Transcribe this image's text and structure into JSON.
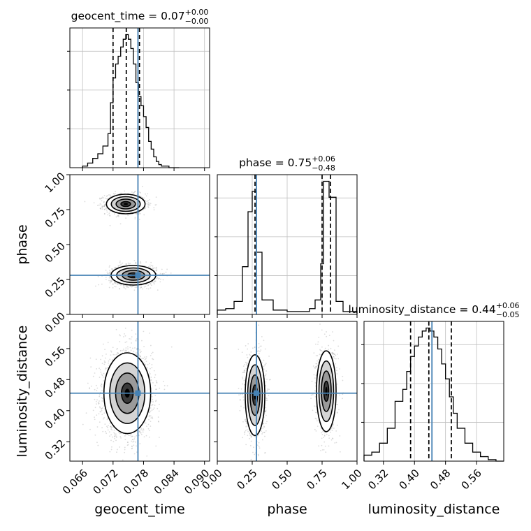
{
  "chart_data": {
    "type": "corner",
    "parameters": [
      "geocent_time",
      "phase",
      "luminosity_distance"
    ],
    "truths": {
      "geocent_time": 0.0769,
      "phase": 0.28,
      "luminosity_distance": 0.445
    },
    "ranges": {
      "geocent_time": [
        0.0635,
        0.091
      ],
      "phase": [
        0.0,
        1.0
      ],
      "luminosity_distance": [
        0.27,
        0.63
      ]
    },
    "ticks": {
      "geocent_time": [
        "0.066",
        "0.072",
        "0.078",
        "0.084",
        "0.090"
      ],
      "phase": [
        "0.00",
        "0.25",
        "0.50",
        "0.75",
        "1.00"
      ],
      "luminosity_distance": [
        "0.32",
        "0.40",
        "0.48",
        "0.56"
      ]
    },
    "titles": [
      {
        "param": "geocent_time",
        "prefix": "geocent_time = 0.07",
        "sup": "+0.00",
        "sub": "−0.00"
      },
      {
        "param": "phase",
        "prefix": "phase = 0.75",
        "sup": "+0.06",
        "sub": "−0.48"
      },
      {
        "param": "luminosity_distance",
        "prefix": "luminosity_distance = 0.44",
        "sup": "+0.06",
        "sub": "−0.05"
      }
    ],
    "quantiles": {
      "geocent_time": [
        0.072,
        0.0746,
        0.0772
      ],
      "phase": [
        0.27,
        0.75,
        0.81
      ],
      "luminosity_distance": [
        0.39,
        0.437,
        0.495
      ]
    },
    "histograms": {
      "geocent_time": {
        "edges": [
          0.066,
          0.067,
          0.068,
          0.069,
          0.07,
          0.071,
          0.0715,
          0.072,
          0.0725,
          0.073,
          0.0735,
          0.074,
          0.0745,
          0.075,
          0.0755,
          0.076,
          0.0765,
          0.077,
          0.0775,
          0.078,
          0.0785,
          0.079,
          0.0795,
          0.08,
          0.0805,
          0.081,
          0.0815,
          0.082,
          0.083,
          0.084,
          0.085
        ],
        "counts": [
          1,
          3,
          6,
          9,
          14,
          22,
          42,
          58,
          67,
          72,
          78,
          83,
          86,
          83,
          77,
          67,
          55,
          46,
          40,
          33,
          26,
          17,
          12,
          7,
          4,
          2,
          1,
          1,
          0,
          0
        ]
      },
      "phase": {
        "edges": [
          0.0,
          0.06,
          0.12,
          0.18,
          0.22,
          0.25,
          0.28,
          0.32,
          0.4,
          0.5,
          0.6,
          0.66,
          0.7,
          0.74,
          0.76,
          0.8,
          0.85,
          0.9,
          1.0
        ],
        "counts": [
          3,
          4,
          9,
          33,
          71,
          85,
          43,
          10,
          3,
          2,
          2,
          4,
          10,
          35,
          92,
          81,
          9,
          2
        ]
      },
      "luminosity_distance": {
        "edges": [
          0.27,
          0.29,
          0.31,
          0.33,
          0.35,
          0.37,
          0.38,
          0.39,
          0.4,
          0.41,
          0.42,
          0.43,
          0.44,
          0.45,
          0.46,
          0.47,
          0.48,
          0.49,
          0.5,
          0.51,
          0.53,
          0.55,
          0.57,
          0.59,
          0.61,
          0.63
        ],
        "counts": [
          4,
          6,
          12,
          22,
          40,
          48,
          60,
          70,
          77,
          83,
          87,
          89,
          87,
          83,
          75,
          65,
          55,
          43,
          32,
          22,
          12,
          6,
          3,
          1,
          0
        ]
      }
    },
    "modes": {
      "phase_vs_geocent_time": [
        {
          "mx": 0.0745,
          "my": 0.79,
          "sx": 0.0019,
          "sy": 0.035,
          "w": 0.5
        },
        {
          "mx": 0.076,
          "my": 0.28,
          "sx": 0.0022,
          "sy": 0.035,
          "w": 0.5
        }
      ],
      "luminosity_distance_vs_geocent_time": [
        {
          "mx": 0.0748,
          "my": 0.445,
          "sx": 0.0023,
          "sy": 0.052,
          "w": 1.0
        }
      ],
      "luminosity_distance_vs_phase": [
        {
          "mx": 0.27,
          "my": 0.44,
          "sx": 0.035,
          "sy": 0.052,
          "w": 0.5
        },
        {
          "mx": 0.78,
          "my": 0.45,
          "sx": 0.035,
          "sy": 0.052,
          "w": 0.5
        }
      ]
    },
    "colors": {
      "truth": "#4682b4",
      "hist": "#000000",
      "grid": "#c0c0c0",
      "scatter": "#9a9a9a"
    }
  }
}
